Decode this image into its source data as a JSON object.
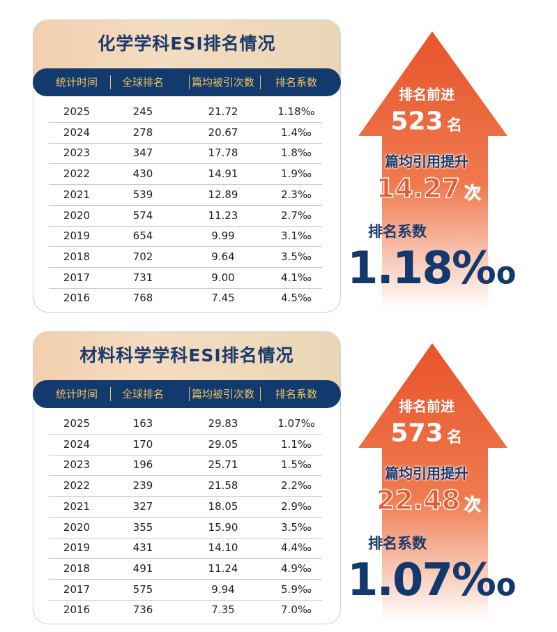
{
  "panels": [
    {
      "title": "化学学科ESI排名情况",
      "headers": [
        "统计时间",
        "全球排名",
        "篇均被引次数",
        "排名系数"
      ],
      "rows": [
        [
          "2025",
          "245",
          "21.72",
          "1.18‰"
        ],
        [
          "2024",
          "278",
          "20.67",
          "1.4‰"
        ],
        [
          "2023",
          "347",
          "17.78",
          "1.8‰"
        ],
        [
          "2022",
          "430",
          "14.91",
          "1.9‰"
        ],
        [
          "2021",
          "539",
          "12.89",
          "2.3‰"
        ],
        [
          "2020",
          "574",
          "11.23",
          "2.7‰"
        ],
        [
          "2019",
          "654",
          "9.99",
          "3.1‰"
        ],
        [
          "2018",
          "702",
          "9.64",
          "3.5‰"
        ],
        [
          "2017",
          "731",
          "9.00",
          "4.1‰"
        ],
        [
          "2016",
          "768",
          "7.45",
          "4.5‰"
        ]
      ],
      "highlights": {
        "rank_label": "排名前进",
        "rank_value": "523",
        "rank_unit": "名",
        "citation_label": "篇均引用提升",
        "citation_value": "14.27",
        "citation_unit": "次",
        "coef_label": "排名系数",
        "coef_value": "1.18‰"
      }
    },
    {
      "title": "材料科学学科ESI排名情况",
      "headers": [
        "统计时间",
        "全球排名",
        "篇均被引次数",
        "排名系数"
      ],
      "rows": [
        [
          "2025",
          "163",
          "29.83",
          "1.07‰"
        ],
        [
          "2024",
          "170",
          "29.05",
          "1.1‰"
        ],
        [
          "2023",
          "196",
          "25.71",
          "1.5‰"
        ],
        [
          "2022",
          "239",
          "21.58",
          "2.2‰"
        ],
        [
          "2021",
          "327",
          "18.05",
          "2.9‰"
        ],
        [
          "2020",
          "355",
          "15.90",
          "3.5‰"
        ],
        [
          "2019",
          "431",
          "14.10",
          "4.4‰"
        ],
        [
          "2018",
          "491",
          "11.24",
          "4.9‰"
        ],
        [
          "2017",
          "575",
          "9.94",
          "5.9‰"
        ],
        [
          "2016",
          "736",
          "7.35",
          "7.0‰"
        ]
      ],
      "highlights": {
        "rank_label": "排名前进",
        "rank_value": "573",
        "rank_unit": "名",
        "citation_label": "篇均引用提升",
        "citation_value": "22.48",
        "citation_unit": "次",
        "coef_label": "排名系数",
        "coef_value": "1.07‰"
      }
    }
  ]
}
